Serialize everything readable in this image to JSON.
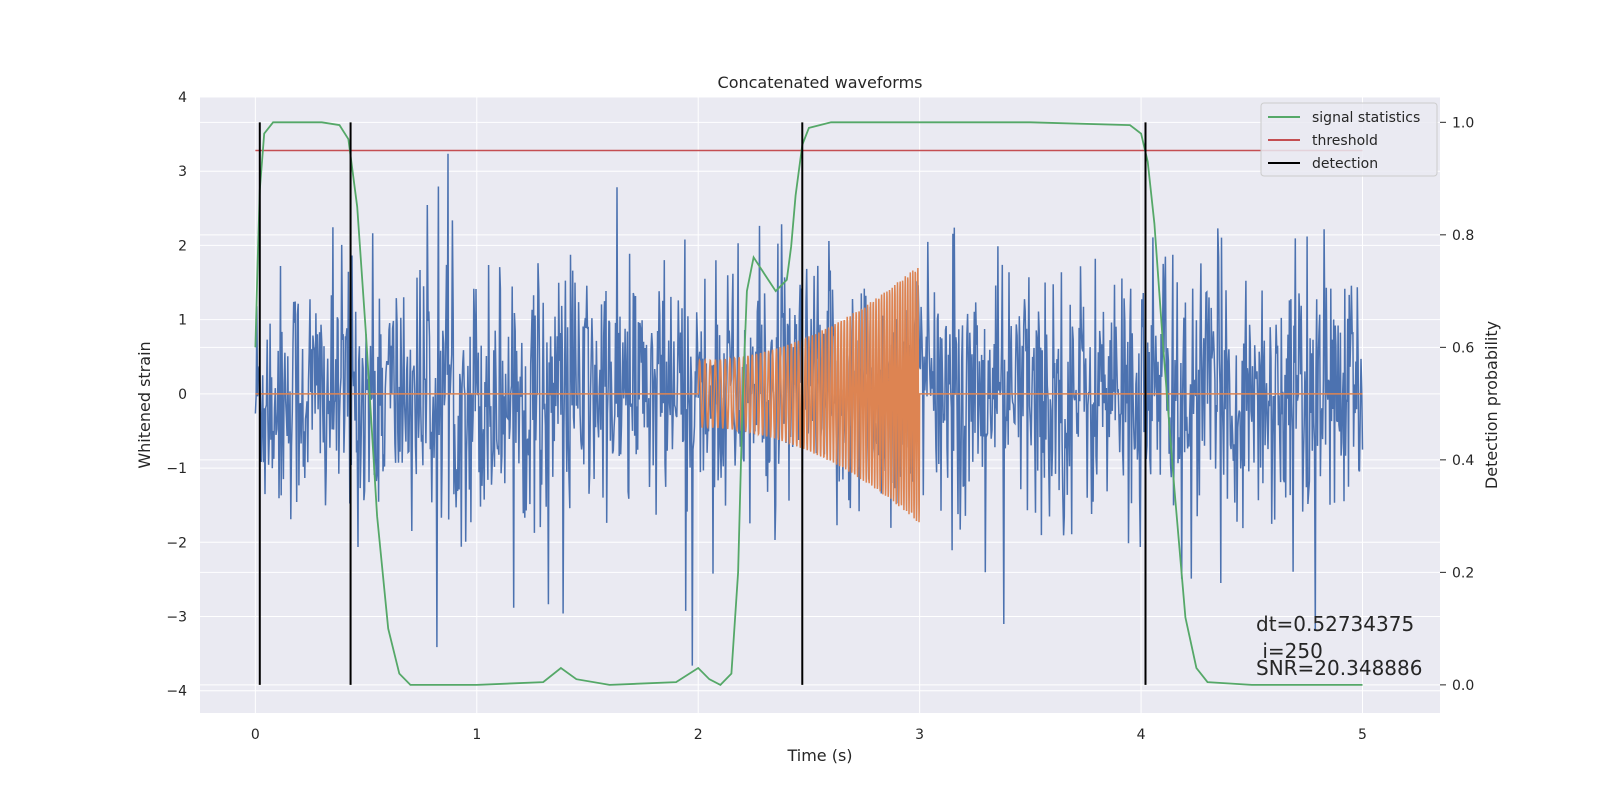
{
  "chart_data": {
    "type": "line",
    "title": "Concatenated waveforms",
    "xlabel": "Time (s)",
    "ylabel": "Whitened strain",
    "ylabel_right": "Detection probability",
    "xlim": [
      -0.25,
      5.35
    ],
    "ylim": [
      -4.3,
      4.0
    ],
    "ylim_right": [
      -0.05,
      1.045
    ],
    "x_ticks": [
      0,
      1,
      2,
      3,
      4,
      5
    ],
    "y_ticks": [
      -4,
      -3,
      -2,
      -1,
      0,
      1,
      2,
      3,
      4
    ],
    "y_ticks_right": [
      0.0,
      0.2,
      0.4,
      0.6,
      0.8,
      1.0
    ],
    "x_tick_labels": [
      "0",
      "1",
      "2",
      "3",
      "4",
      "5"
    ],
    "y_tick_labels": [
      "−4",
      "−3",
      "−2",
      "−1",
      "0",
      "1",
      "2",
      "3",
      "4"
    ],
    "y_tick_labels_right": [
      "0.0",
      "0.2",
      "0.4",
      "0.6",
      "0.8",
      "1.0"
    ],
    "grid": true,
    "legend_position": "top-right",
    "colors": {
      "strain": "#4c72b0",
      "injected_chirp": "#dd8452",
      "signal_statistics": "#55a868",
      "threshold": "#c44e52",
      "detection": "#000000",
      "background": "#eaeaf2",
      "grid": "#ffffff"
    },
    "strain": {
      "x_range": [
        0,
        5
      ],
      "amplitude_envelope": 2.0,
      "max_peak": 3.65,
      "min_peak": -3.9
    },
    "injected_chirp": {
      "x_range": [
        2.0,
        3.0
      ],
      "start_amplitude": 0.45,
      "end_amplitude": 1.75
    },
    "signal_statistics": {
      "x": [
        0,
        0.01,
        0.02,
        0.04,
        0.08,
        0.15,
        0.3,
        0.38,
        0.42,
        0.46,
        0.5,
        0.55,
        0.6,
        0.65,
        0.7,
        1.0,
        1.3,
        1.38,
        1.45,
        1.6,
        1.9,
        2.0,
        2.05,
        2.1,
        2.15,
        2.18,
        2.2,
        2.22,
        2.25,
        2.3,
        2.35,
        2.4,
        2.42,
        2.44,
        2.47,
        2.5,
        2.6,
        3.0,
        3.5,
        3.95,
        4.0,
        4.03,
        4.06,
        4.1,
        4.15,
        4.2,
        4.25,
        4.3,
        4.5,
        5.0
      ],
      "values": [
        0.6,
        0.75,
        0.88,
        0.98,
        1.0,
        1.0,
        1.0,
        0.995,
        0.97,
        0.85,
        0.62,
        0.3,
        0.1,
        0.02,
        0.0,
        0.0,
        0.005,
        0.03,
        0.01,
        0.0,
        0.005,
        0.03,
        0.01,
        0.0,
        0.02,
        0.2,
        0.5,
        0.7,
        0.76,
        0.73,
        0.7,
        0.72,
        0.78,
        0.87,
        0.96,
        0.99,
        1.0,
        1.0,
        1.0,
        0.995,
        0.98,
        0.93,
        0.82,
        0.6,
        0.35,
        0.12,
        0.03,
        0.005,
        0.0,
        0.0
      ]
    },
    "threshold": {
      "value": 0.95,
      "x_range": [
        0,
        5
      ]
    },
    "detection": {
      "x": [
        0.02,
        0.43,
        2.47,
        4.02
      ],
      "y_range": [
        0.0,
        1.0
      ]
    },
    "legend": [
      "signal statistics",
      "threshold",
      "detection"
    ],
    "annotations": [
      "dt=0.52734375",
      " i=250",
      "SNR=20.348886"
    ]
  }
}
